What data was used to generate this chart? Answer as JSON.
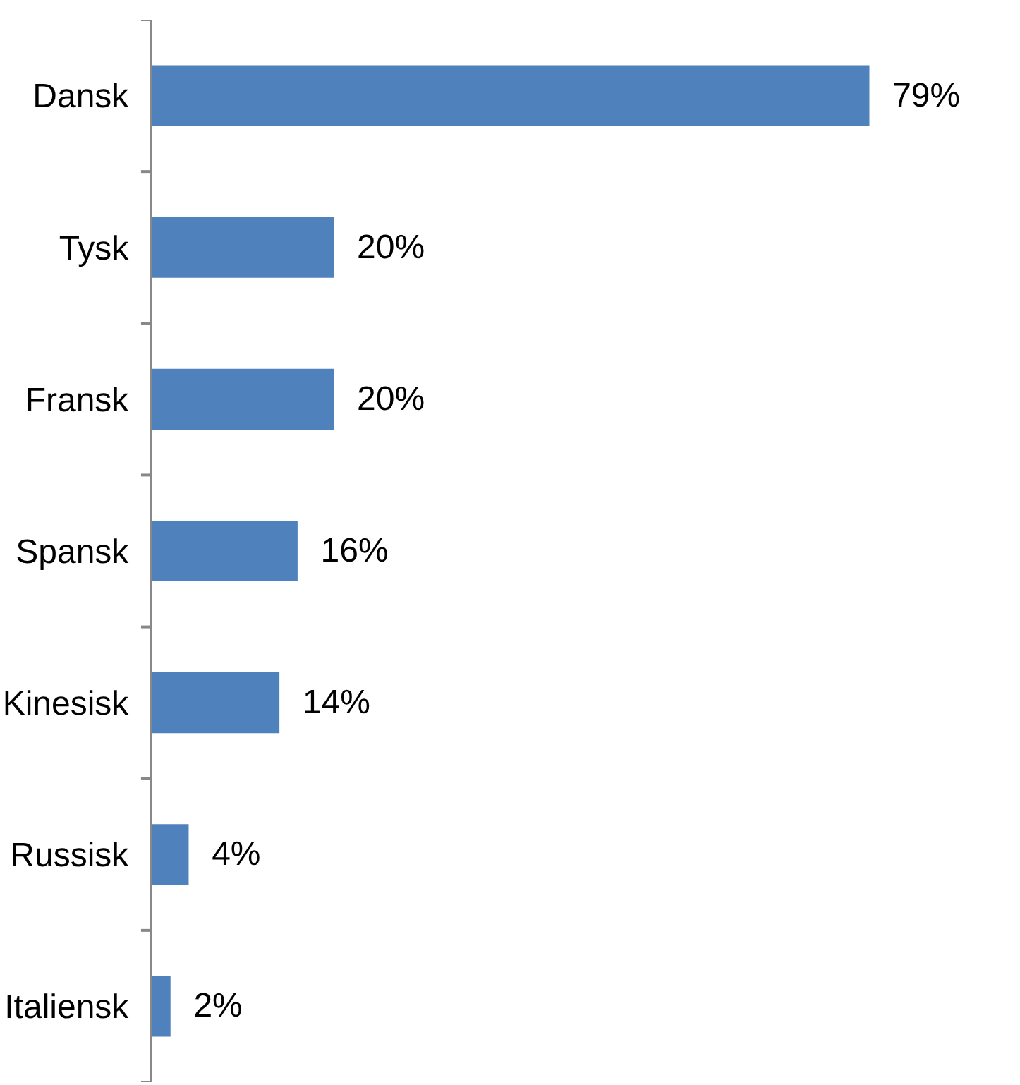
{
  "chart_data": {
    "type": "bar",
    "orientation": "horizontal",
    "categories": [
      "Dansk",
      "Tysk",
      "Fransk",
      "Spansk",
      "Kinesisk",
      "Russisk",
      "Italiensk"
    ],
    "values": [
      79,
      20,
      20,
      16,
      14,
      4,
      2
    ],
    "value_labels": [
      "79%",
      "20%",
      "20%",
      "16%",
      "14%",
      "4%",
      "2%"
    ],
    "color": "#4f81bd"
  }
}
